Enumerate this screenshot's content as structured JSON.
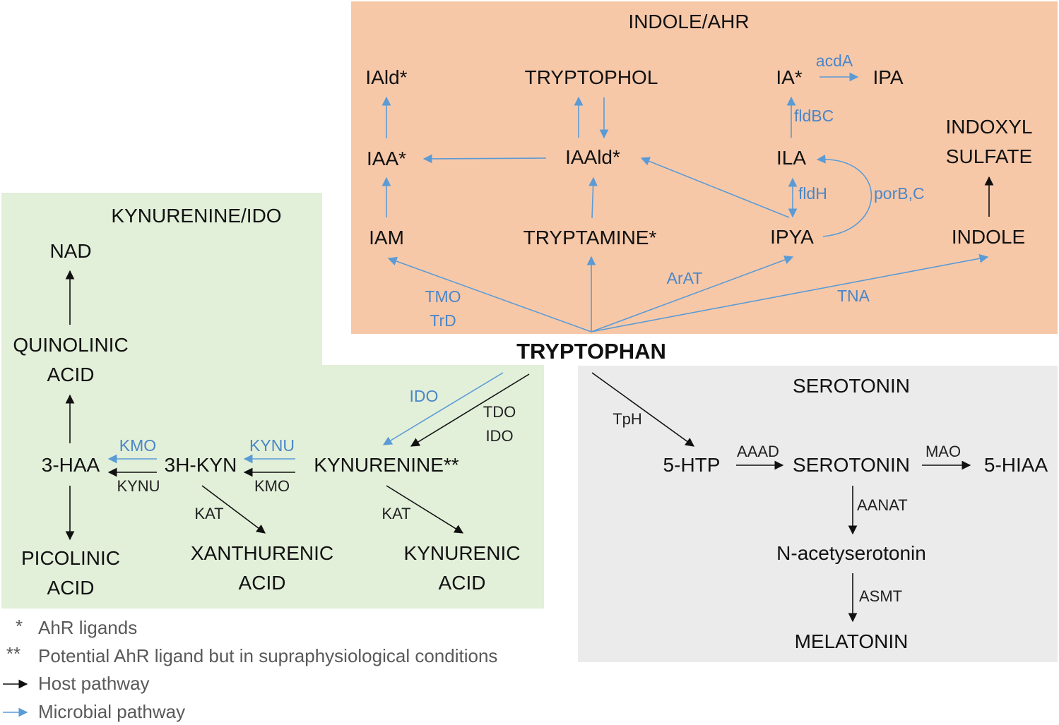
{
  "colors": {
    "indole_panel": "#f7c8a8",
    "kynurenine_panel": "#e2efd9",
    "serotonin_panel": "#ebebeb",
    "microbial_arrow": "#5b9bd5",
    "host_arrow": "#111111"
  },
  "panels": {
    "indole": "INDOLE/AHR",
    "kynurenine": "KYNURENINE/IDO",
    "serotonin": "SEROTONIN"
  },
  "nodes": {
    "tryptophan": "TRYPTOPHAN",
    "iald": "IAld*",
    "tryptophol": "TRYPTOPHOL",
    "ia": "IA*",
    "ipa": "IPA",
    "iaa": "IAA*",
    "iaald": "IAAld*",
    "ila": "ILA",
    "indoxyl_1": "INDOXYL",
    "indoxyl_2": "SULFATE",
    "iam": "IAM",
    "tryptamine": "TRYPTAMINE*",
    "ipya": "IPYA",
    "indole": "INDOLE",
    "nad": "NAD",
    "quinolinic_1": "QUINOLINIC",
    "quinolinic_2": "ACID",
    "haa": "3-HAA",
    "hkyn": "3H-KYN",
    "kynurenine": "KYNURENINE**",
    "picolinic_1": "PICOLINIC",
    "picolinic_2": "ACID",
    "xanthurenic_1": "XANTHURENIC",
    "xanthurenic_2": "ACID",
    "kynurenic_1": "KYNURENIC",
    "kynurenic_2": "ACID",
    "htp": "5-HTP",
    "serotonin": "SEROTONIN",
    "hiaa": "5-HIAA",
    "nacetyl": "N-acetyserotonin",
    "melatonin": "MELATONIN"
  },
  "enzymes": {
    "acda": "acdA",
    "fldbc": "fldBC",
    "fldh": "fldH",
    "porbc": "porB,C",
    "tmo": "TMO",
    "trd": "TrD",
    "arat": "ArAT",
    "tna": "TNA",
    "ido_microbial": "IDO",
    "tdo": "TDO",
    "ido_host": "IDO",
    "kmo_microbial": "KMO",
    "kynu_host": "KYNU",
    "kynu_microbial": "KYNU",
    "kmo_host": "KMO",
    "kat_left": "KAT",
    "kat_right": "KAT",
    "tph": "TpH",
    "aaad": "AAAD",
    "mao": "MAO",
    "aanat": "AANAT",
    "asmt": "ASMT"
  },
  "legend": {
    "star_1": "*",
    "star_1_text": "AhR ligands",
    "star_2": "**",
    "star_2_text": "Potential AhR ligand but in supraphysiological conditions",
    "host": "Host pathway",
    "microbial": "Microbial pathway"
  }
}
